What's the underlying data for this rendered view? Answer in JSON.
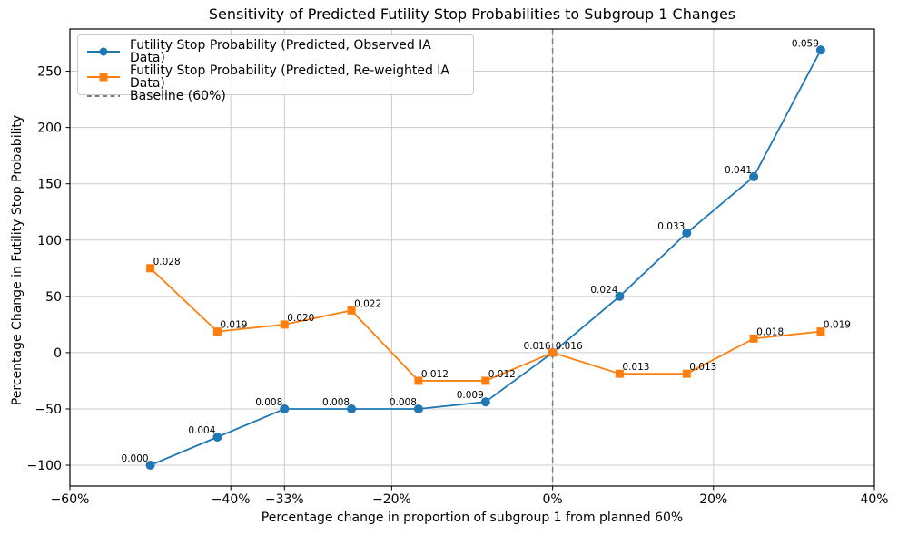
{
  "figure": {
    "background": "#ffffff"
  },
  "chart_data": {
    "type": "line",
    "title": "Sensitivity of Predicted Futility Stop Probabilities to Subgroup 1 Changes",
    "xlabel": "Percentage change in proportion of subgroup 1 from planned 60%",
    "ylabel": "Percentage Change in Futility Stop Probability",
    "xlim": [
      -60,
      40
    ],
    "ylim": [
      -118.5,
      287.5
    ],
    "grid": true,
    "grid_color": "#cccccc",
    "axis_color": "#000000",
    "x_ticks": [
      {
        "value": -60,
        "label": "−60%"
      },
      {
        "value": -40,
        "label": "−40%"
      },
      {
        "value": -33.33,
        "label": "−33%"
      },
      {
        "value": -20,
        "label": "−20%"
      },
      {
        "value": 0,
        "label": "0%"
      },
      {
        "value": 20,
        "label": "20%"
      },
      {
        "value": 40,
        "label": "40%"
      }
    ],
    "y_ticks": [
      {
        "value": -100,
        "label": "−100"
      },
      {
        "value": -50,
        "label": "−50"
      },
      {
        "value": 0,
        "label": "0"
      },
      {
        "value": 50,
        "label": "50"
      },
      {
        "value": 100,
        "label": "100"
      },
      {
        "value": 150,
        "label": "150"
      },
      {
        "value": 200,
        "label": "200"
      },
      {
        "value": 250,
        "label": "250"
      }
    ],
    "x": [
      -50,
      -41.67,
      -33.33,
      -25,
      -16.67,
      -8.33,
      0,
      8.33,
      16.67,
      25,
      33.33
    ],
    "series": [
      {
        "name": "Futility Stop Probability (Predicted, Observed IA Data)",
        "color": "#1f77b4",
        "marker": "circle",
        "values": [
          -100,
          -75,
          -50,
          -50,
          -50,
          -43.75,
          0,
          50,
          106.25,
          156.25,
          268.75
        ],
        "point_labels": [
          "0.000",
          "0.004",
          "0.008",
          "0.008",
          "0.008",
          "0.009",
          "0.016",
          "0.024",
          "0.033",
          "0.041",
          "0.059"
        ],
        "label_side": "left"
      },
      {
        "name": "Futility Stop Probability (Predicted, Re-weighted IA Data)",
        "color": "#ff7f0e",
        "marker": "square",
        "values": [
          75,
          18.75,
          25,
          37.5,
          -25,
          -25,
          0,
          -18.75,
          -18.75,
          12.5,
          18.75
        ],
        "point_labels": [
          "0.028",
          "0.019",
          "0.020",
          "0.022",
          "0.012",
          "0.012",
          "0.016",
          "0.013",
          "0.013",
          "0.018",
          "0.019"
        ],
        "label_side": "right"
      }
    ],
    "baseline": {
      "x": 0,
      "color": "#808080",
      "style": "dashed"
    },
    "legend": {
      "position": "upper-left",
      "entries": [
        {
          "label": "Futility Stop Probability (Predicted, Observed IA Data)",
          "color": "#1f77b4",
          "marker": "circle",
          "dashed": false
        },
        {
          "label": "Futility Stop Probability (Predicted, Re-weighted IA Data)",
          "color": "#ff7f0e",
          "marker": "square",
          "dashed": false
        },
        {
          "label": "Baseline (60%)",
          "color": "#808080",
          "marker": "none",
          "dashed": true
        }
      ]
    }
  }
}
